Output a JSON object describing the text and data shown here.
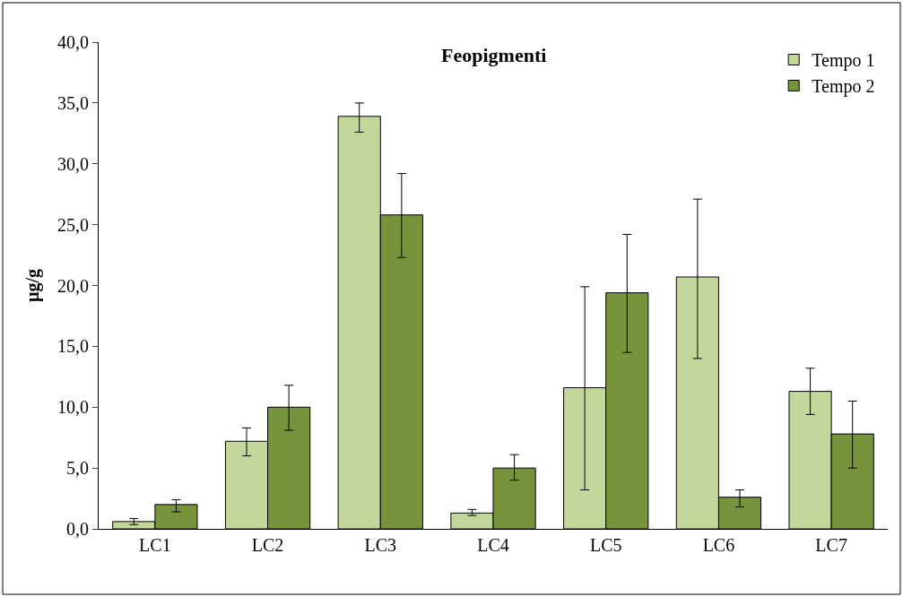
{
  "chart_data": {
    "type": "bar",
    "title": "Feopigmenti",
    "ylabel": "µg/g",
    "categories": [
      "LC1",
      "LC2",
      "LC3",
      "LC4",
      "LC5",
      "LC6",
      "LC7"
    ],
    "series": [
      {
        "name": "Tempo 1",
        "color": "#c4d79b",
        "values": [
          0.6,
          7.2,
          33.9,
          1.3,
          11.6,
          20.7,
          11.3
        ],
        "errors": [
          [
            0.35,
            0.85
          ],
          [
            6.0,
            8.3
          ],
          [
            32.6,
            35.0
          ],
          [
            1.1,
            1.6
          ],
          [
            3.2,
            19.9
          ],
          [
            14.0,
            27.1
          ],
          [
            9.4,
            13.2
          ]
        ]
      },
      {
        "name": "Tempo 2",
        "color": "#77933c",
        "values": [
          2.0,
          10.0,
          25.8,
          5.0,
          19.4,
          2.6,
          7.8
        ],
        "errors": [
          [
            1.4,
            2.4
          ],
          [
            8.1,
            11.8
          ],
          [
            22.3,
            29.2
          ],
          [
            4.0,
            6.1
          ],
          [
            14.5,
            24.2
          ],
          [
            1.8,
            3.2
          ],
          [
            5.0,
            10.5
          ]
        ]
      }
    ],
    "ylim": [
      0,
      40
    ],
    "yticks": [
      {
        "value": 0,
        "label": "0,0"
      },
      {
        "value": 5,
        "label": "5,0"
      },
      {
        "value": 10,
        "label": "10,0"
      },
      {
        "value": 15,
        "label": "15,0"
      },
      {
        "value": 20,
        "label": "20,0"
      },
      {
        "value": 25,
        "label": "25,0"
      },
      {
        "value": 30,
        "label": "30,0"
      },
      {
        "value": 35,
        "label": "35,0"
      },
      {
        "value": 40,
        "label": "40,0"
      }
    ],
    "legend": "top right"
  }
}
